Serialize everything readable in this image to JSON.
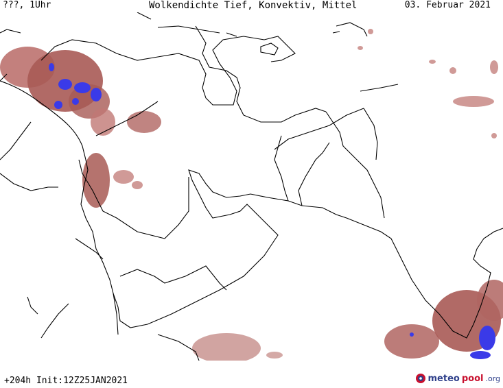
{
  "header": {
    "left": "???, 1Uhr",
    "title": "Wolkendichte  Tief, Konvektiv, Mittel",
    "date": "03. Februar 2021"
  },
  "footer": {
    "forecast": "+204h Init:12Z25JAN2021",
    "logo_part1": "meteo",
    "logo_part2": "pool",
    "logo_part3": ".org"
  },
  "legend_colors": {
    "cloud_brown": "#a85a55",
    "cloud_light": "#d4a09c",
    "convective_blue": "#3a3ae8"
  }
}
